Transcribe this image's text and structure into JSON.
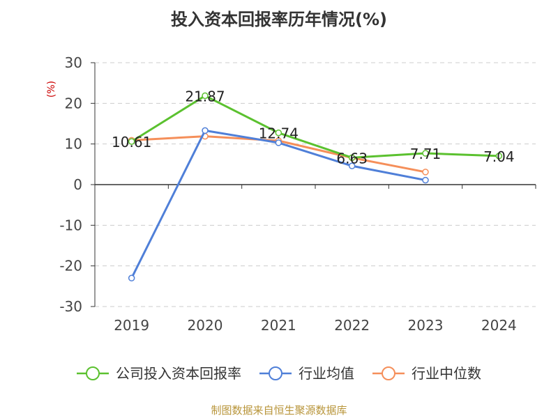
{
  "chart_data": {
    "type": "line",
    "title": "投入资本回报率历年情况(%)",
    "ylabel": "(%)",
    "xlabel": "",
    "categories": [
      "2019",
      "2020",
      "2021",
      "2022",
      "2023",
      "2024"
    ],
    "ylim": [
      -30,
      30
    ],
    "yticks": [
      30,
      20,
      10,
      0,
      -10,
      -20,
      -30
    ],
    "grid": true,
    "legend_position": "bottom",
    "series": [
      {
        "name": "公司投入资本回报率",
        "color": "#5bc12f",
        "values": [
          10.61,
          21.87,
          12.74,
          6.63,
          7.71,
          7.04
        ],
        "labels": [
          "10.61",
          "21.87",
          "12.74",
          "6.63",
          "7.71",
          "7.04"
        ]
      },
      {
        "name": "行业均值",
        "color": "#4f7fd8",
        "values": [
          -23.0,
          13.3,
          10.3,
          4.6,
          1.1,
          null
        ]
      },
      {
        "name": "行业中位数",
        "color": "#f58f5a",
        "values": [
          10.9,
          11.9,
          10.8,
          6.6,
          3.1,
          null
        ]
      }
    ]
  },
  "footer": "制图数据来自恒生聚源数据库"
}
